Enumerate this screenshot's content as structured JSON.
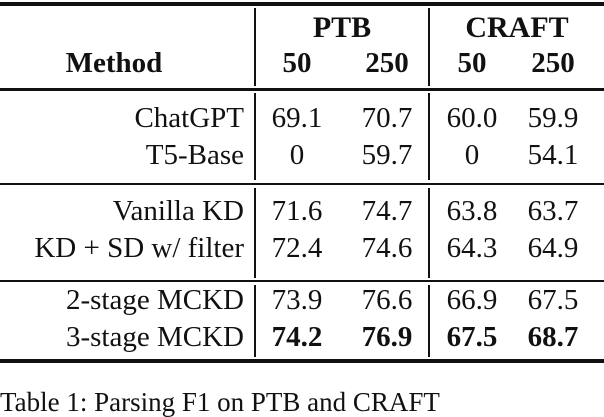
{
  "table": {
    "method_header": "Method",
    "col_groups": [
      {
        "label": "PTB",
        "subcols": [
          "50",
          "250"
        ]
      },
      {
        "label": "CRAFT",
        "subcols": [
          "50",
          "250"
        ]
      }
    ],
    "groups": [
      {
        "rows": [
          {
            "method": "ChatGPT",
            "values": [
              "69.1",
              "70.7",
              "60.0",
              "59.9"
            ],
            "bold_values": false
          },
          {
            "method": "T5-Base",
            "values": [
              "0",
              "59.7",
              "0",
              "54.1"
            ],
            "bold_values": false
          }
        ]
      },
      {
        "rows": [
          {
            "method": "Vanilla KD",
            "values": [
              "71.6",
              "74.7",
              "63.8",
              "63.7"
            ],
            "bold_values": false
          },
          {
            "method": "KD + SD w/ filter",
            "values": [
              "72.4",
              "74.6",
              "64.3",
              "64.9"
            ],
            "bold_values": false
          }
        ]
      },
      {
        "rows": [
          {
            "method": "2-stage MCKD",
            "values": [
              "73.9",
              "76.6",
              "66.9",
              "67.5"
            ],
            "bold_values": false
          },
          {
            "method": "3-stage MCKD",
            "values": [
              "74.2",
              "76.9",
              "67.5",
              "68.7"
            ],
            "bold_values": true
          }
        ]
      }
    ]
  },
  "caption": {
    "text": "Table 1: Parsing F1 on PTB and CRAFT"
  },
  "colors": {
    "ink": "#111111",
    "background": "#ffffff"
  }
}
